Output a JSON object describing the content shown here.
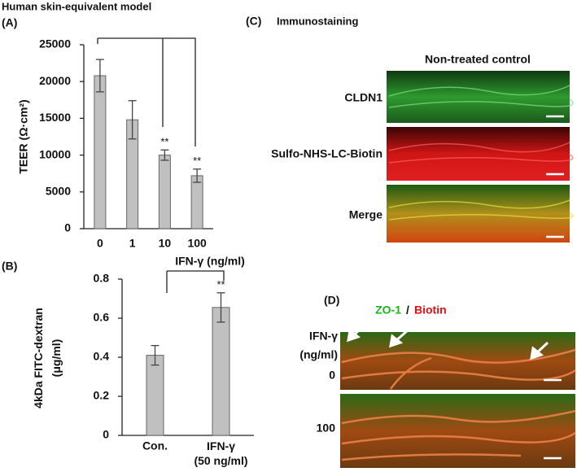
{
  "figure_title": "Human skin-equivalent model",
  "panel_labels": [
    "(A)",
    "(B)",
    "(C)",
    "(D)"
  ],
  "immunostaining": {
    "title": "Immunostaining",
    "column": "Non-treated control",
    "rows": [
      "CLDN1",
      "Sulfo-NHS-LC-Biotin",
      "Merge"
    ]
  },
  "panel_d": {
    "stain_green": "ZO-1",
    "separator": "/",
    "stain_red": "Biotin",
    "treatment": "IFN-γ",
    "unit": "(ng/ml)",
    "doses": [
      "0",
      "100"
    ]
  },
  "chart_data": [
    {
      "type": "bar",
      "ylabel": "TEER (Ω·cm²)",
      "xlabel": "IFN-γ  (ng/ml)",
      "categories": [
        "0",
        "1",
        "10",
        "100"
      ],
      "values": [
        20800,
        14800,
        10000,
        7200
      ],
      "errors": [
        2200,
        2600,
        700,
        900
      ],
      "significance": [
        null,
        null,
        "**",
        "**"
      ],
      "color": "#c0c0c0",
      "ylim": [
        0,
        25000
      ],
      "yticks": [
        0,
        5000,
        10000,
        15000,
        20000,
        25000
      ]
    },
    {
      "type": "bar",
      "ylabel": "4kDa FITC-dextran\n(μg/ml)",
      "categories": [
        "Con.",
        "IFN-γ\n(50 ng/ml)"
      ],
      "values": [
        0.41,
        0.655
      ],
      "errors": [
        0.05,
        0.075
      ],
      "significance": [
        null,
        "**"
      ],
      "color": "#c0c0c0",
      "ylim": [
        0,
        0.8
      ],
      "yticks": [
        0,
        0.2,
        0.4,
        0.6,
        0.8
      ]
    }
  ]
}
